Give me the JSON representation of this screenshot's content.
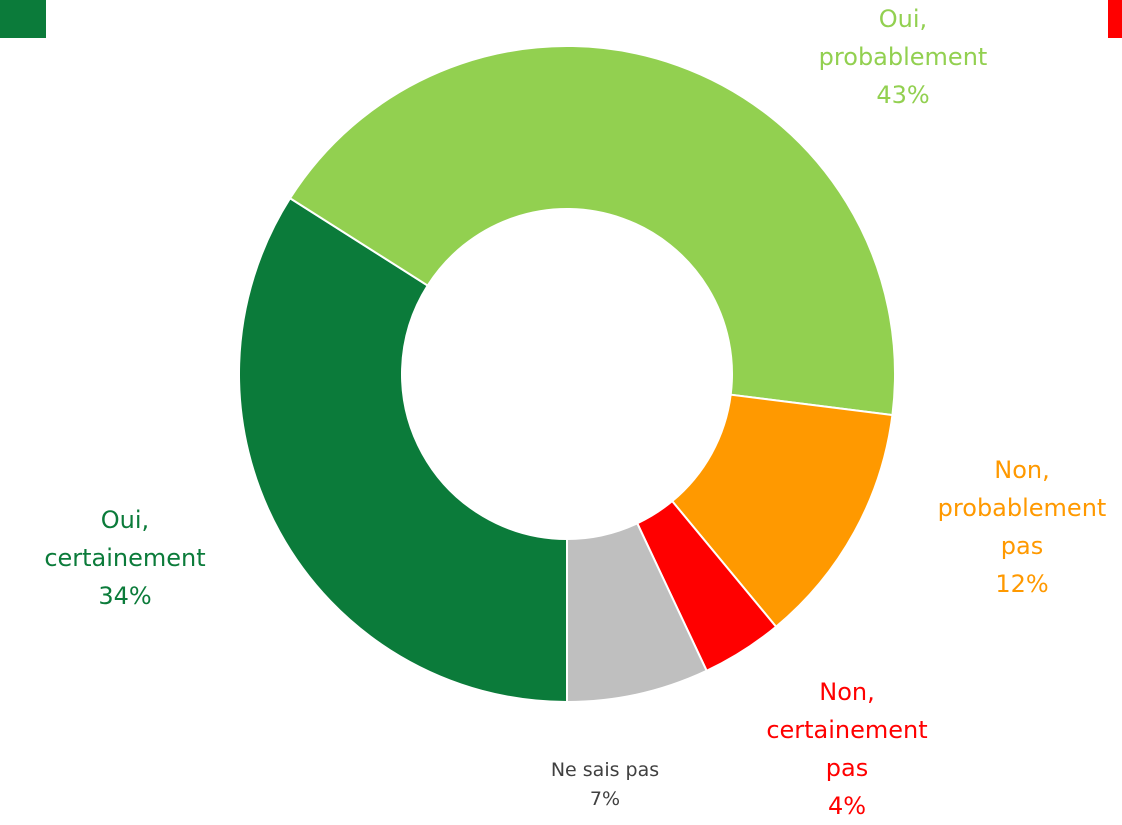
{
  "chart_data": {
    "type": "donut",
    "categories": [
      "Oui, certainement",
      "Oui, probablement",
      "Non, probablement pas",
      "Non, certainement pas",
      "Ne sais pas"
    ],
    "values": [
      34,
      43,
      12,
      4,
      7
    ],
    "value_labels": [
      "34%",
      "43%",
      "12%",
      "4%",
      "7%"
    ],
    "colors": [
      "#0b7b3a",
      "#92d050",
      "#ff9900",
      "#ff0000",
      "#bfbfbf"
    ]
  }
}
